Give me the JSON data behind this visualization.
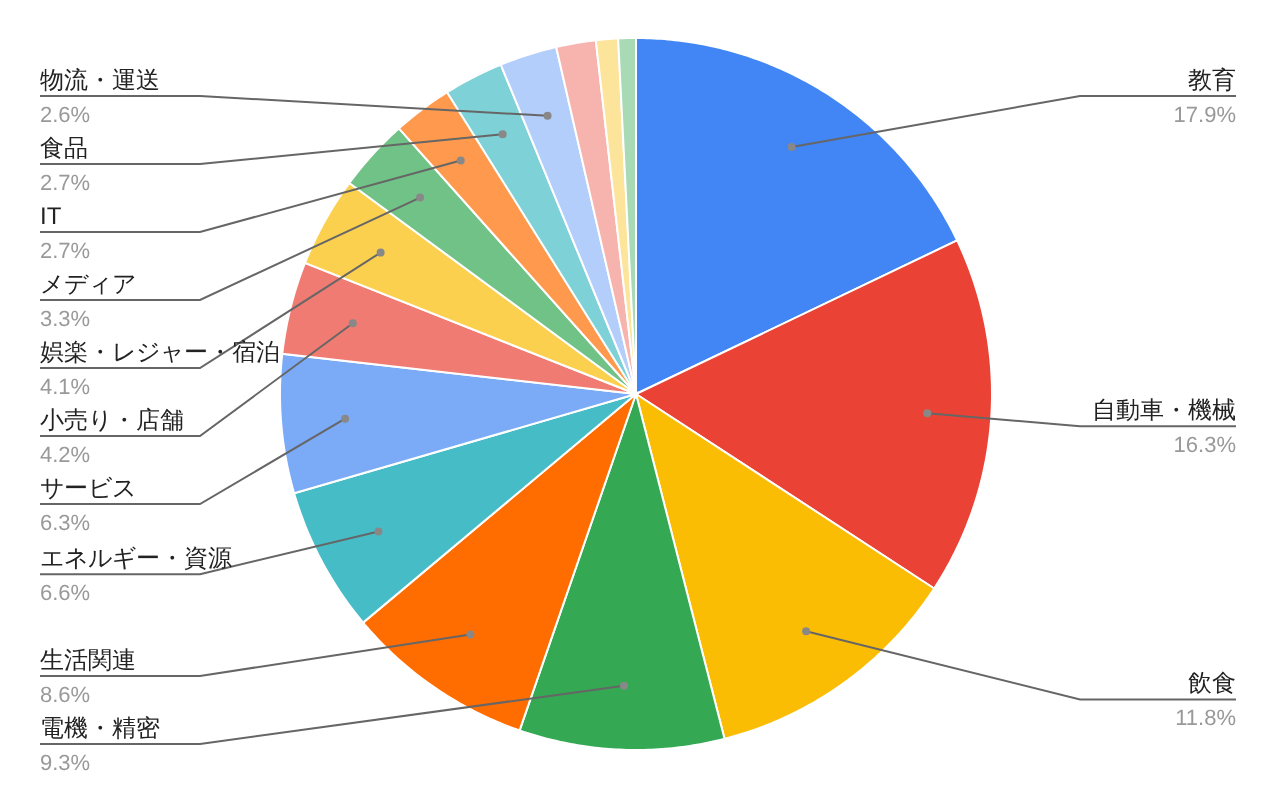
{
  "chart_data": {
    "type": "pie",
    "value_labels": [
      "17.9%",
      "16.3%",
      "11.8%",
      "9.3%",
      "8.6%",
      "6.6%",
      "6.3%",
      "4.2%",
      "4.1%",
      "3.3%",
      "2.7%",
      "2.7%",
      "2.6%",
      null,
      null,
      null
    ],
    "categories": [
      "教育",
      "自動車・機械",
      "飲食",
      "電機・精密",
      "生活関連",
      "エネルギー・資源",
      "サービス",
      "小売り・店舗",
      "娯楽・レジャー・宿泊",
      "メディア",
      "IT",
      "食品",
      "物流・運送",
      null,
      null,
      null
    ],
    "values": [
      17.9,
      16.3,
      11.8,
      9.3,
      8.6,
      6.6,
      6.3,
      4.2,
      4.1,
      3.3,
      2.7,
      2.7,
      2.6,
      1.8,
      1.0,
      0.8
    ],
    "colors": [
      "#4285f4",
      "#ea4335",
      "#fbbc04",
      "#34a853",
      "#ff6d01",
      "#46bdc6",
      "#7baaf7",
      "#f07b72",
      "#fcd04f",
      "#71c287",
      "#ff994d",
      "#7ed1d7",
      "#b3cefb",
      "#f7b4ae",
      "#fde49b",
      "#a8dab5"
    ]
  }
}
